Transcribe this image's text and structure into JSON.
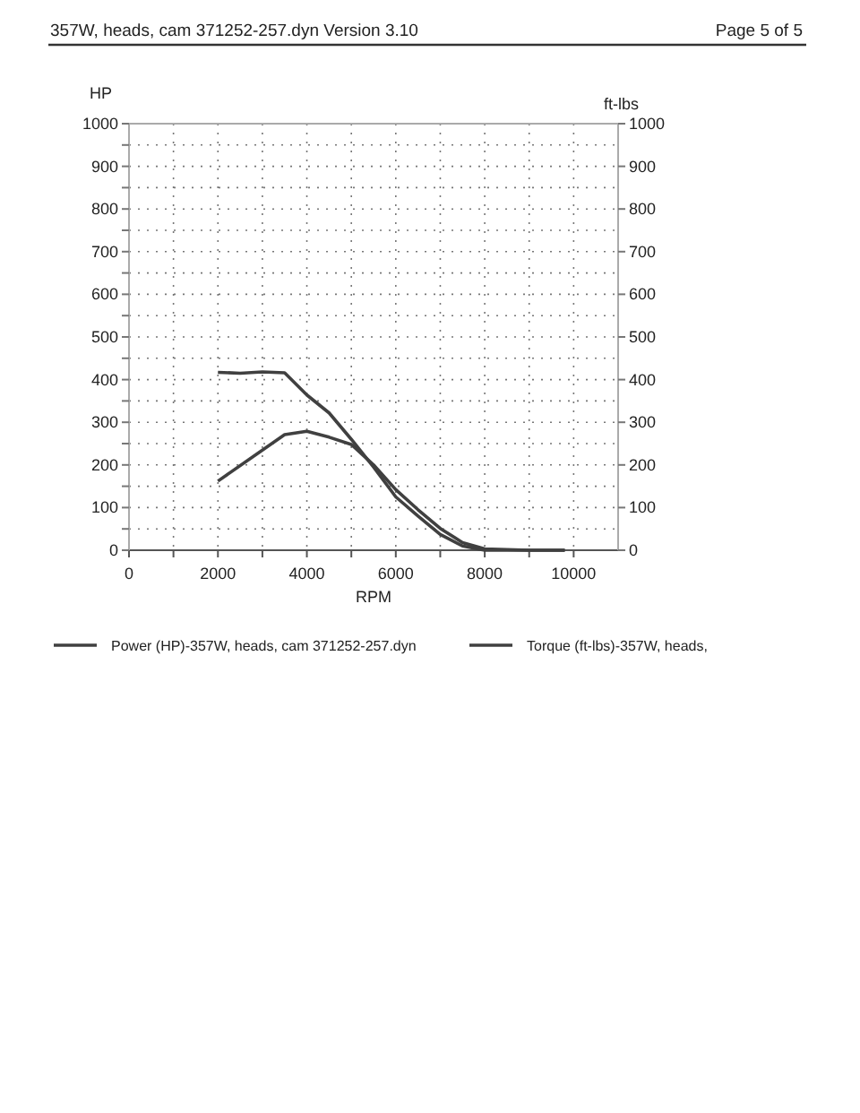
{
  "chart_data": {
    "type": "line",
    "title": "357W, heads, cam 371252-257.dyn  Version 3.10",
    "annotations": [
      "Page 5 of 5"
    ],
    "xlabel": "RPM",
    "ylabel": "HP",
    "y2label": "ft-lbs",
    "xlim": [
      0,
      11000
    ],
    "xticks": [
      0,
      {
        "value": 1000,
        "label": null
      },
      2000,
      {
        "value": 3000,
        "label": null
      },
      4000,
      {
        "value": 5000,
        "label": null
      },
      6000,
      {
        "value": 7000,
        "label": null
      },
      8000,
      {
        "value": 9000,
        "label": null
      },
      10000
    ],
    "ylim": [
      0,
      1000
    ],
    "yticks": [
      0,
      {
        "value": 50,
        "label": null
      },
      100,
      {
        "value": 150,
        "label": null
      },
      200,
      {
        "value": 250,
        "label": null
      },
      300,
      {
        "value": 350,
        "label": null
      },
      400,
      {
        "value": 450,
        "label": null
      },
      500,
      {
        "value": 550,
        "label": null
      },
      600,
      {
        "value": 650,
        "label": null
      },
      700,
      {
        "value": 750,
        "label": null
      },
      800,
      {
        "value": 850,
        "label": null
      },
      900,
      {
        "value": 950,
        "label": null
      },
      1000
    ],
    "y2lim": [
      0,
      1000
    ],
    "y2ticks": [
      0,
      100,
      200,
      300,
      400,
      500,
      600,
      700,
      800,
      900,
      1000
    ],
    "grid": true,
    "legend": "bottom",
    "marker": "none",
    "line_style": "solid",
    "series": [
      {
        "name": "Power (HP)-357W, heads, cam 371252-257.dyn",
        "color": "#404040",
        "x": [
          2000,
          3500,
          4000,
          4500,
          5000,
          5500,
          6000,
          6500,
          7000,
          7500,
          8000,
          9000,
          9800
        ],
        "values": [
          162,
          271,
          279,
          265,
          248,
          200,
          142,
          95,
          51,
          18,
          3,
          0,
          0
        ]
      },
      {
        "name": "Torque (ft-lbs)-357W, heads,",
        "color": "#404040",
        "axis": "y2",
        "x": [
          2000,
          2500,
          3000,
          3500,
          4000,
          4500,
          5000,
          5500,
          6000,
          6500,
          7000,
          7500,
          8000,
          9000,
          9800
        ],
        "values": [
          417,
          415,
          418,
          416,
          364,
          322,
          260,
          195,
          125,
          80,
          37,
          10,
          0,
          0,
          0
        ]
      }
    ]
  }
}
